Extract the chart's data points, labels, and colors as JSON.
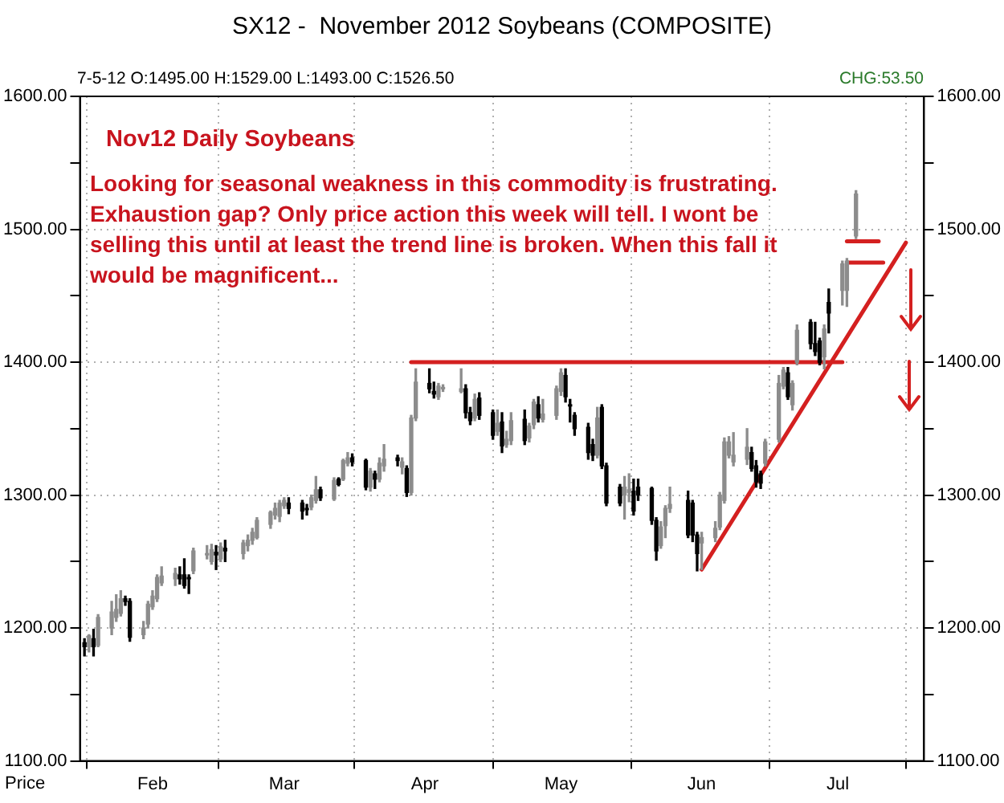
{
  "chart_data": {
    "type": "candlestick",
    "title": "SX12 -  November 2012 Soybeans (COMPOSITE)",
    "ylabel": "Price",
    "annotations": [
      "7-5-12 O:1495.00 H:1529.00 L:1493.00 C:1526.50",
      "CHG:53.50",
      "Nov12 Daily Soybeans",
      "Looking for seasonal weakness in this commodity is frustrating. Exhaustion gap? Only price action this week will tell. I wont be selling this until at least the trend line is broken. When this fall it would be magnificent..."
    ],
    "x": [
      "2012-01-17",
      "2012-01-18",
      "2012-01-19",
      "2012-01-20",
      "2012-01-23",
      "2012-01-24",
      "2012-01-25",
      "2012-01-26",
      "2012-01-27",
      "2012-01-30",
      "2012-01-31",
      "2012-02-01",
      "2012-02-02",
      "2012-02-03",
      "2012-02-06",
      "2012-02-07",
      "2012-02-08",
      "2012-02-09",
      "2012-02-10",
      "2012-02-13",
      "2012-02-14",
      "2012-02-15",
      "2012-02-16",
      "2012-02-17",
      "2012-02-21",
      "2012-02-22",
      "2012-02-23",
      "2012-02-24",
      "2012-02-27",
      "2012-02-28",
      "2012-02-29",
      "2012-03-01",
      "2012-03-02",
      "2012-03-05",
      "2012-03-06",
      "2012-03-07",
      "2012-03-08",
      "2012-03-09",
      "2012-03-12",
      "2012-03-13",
      "2012-03-14",
      "2012-03-15",
      "2012-03-16",
      "2012-03-19",
      "2012-03-20",
      "2012-03-21",
      "2012-03-22",
      "2012-03-23",
      "2012-03-26",
      "2012-03-27",
      "2012-03-28",
      "2012-03-29",
      "2012-03-30",
      "2012-04-02",
      "2012-04-03",
      "2012-04-04",
      "2012-04-05",
      "2012-04-09",
      "2012-04-10",
      "2012-04-11",
      "2012-04-12",
      "2012-04-13",
      "2012-04-16",
      "2012-04-17",
      "2012-04-18",
      "2012-04-19",
      "2012-04-20",
      "2012-04-23",
      "2012-04-24",
      "2012-04-25",
      "2012-04-26",
      "2012-04-27",
      "2012-04-30",
      "2012-05-01",
      "2012-05-02",
      "2012-05-03",
      "2012-05-04",
      "2012-05-07",
      "2012-05-08",
      "2012-05-09",
      "2012-05-10",
      "2012-05-11",
      "2012-05-14",
      "2012-05-15",
      "2012-05-16",
      "2012-05-17",
      "2012-05-18",
      "2012-05-21",
      "2012-05-22",
      "2012-05-23",
      "2012-05-24",
      "2012-05-25",
      "2012-05-29",
      "2012-05-30",
      "2012-05-31",
      "2012-06-01",
      "2012-06-04",
      "2012-06-05",
      "2012-06-06",
      "2012-06-07",
      "2012-06-08",
      "2012-06-11",
      "2012-06-12",
      "2012-06-13",
      "2012-06-14",
      "2012-06-15",
      "2012-06-18",
      "2012-06-19",
      "2012-06-20",
      "2012-06-21",
      "2012-06-22",
      "2012-06-25",
      "2012-06-26",
      "2012-06-27",
      "2012-06-28",
      "2012-06-29",
      "2012-07-02",
      "2012-07-03",
      "2012-07-05"
    ],
    "ohlc": [
      [
        1189,
        1192,
        1179,
        1186
      ],
      [
        1186,
        1195,
        1182,
        1194
      ],
      [
        1192,
        1199,
        1179,
        1186
      ],
      [
        1187,
        1210,
        1186,
        1208
      ],
      [
        1200,
        1220,
        1195,
        1212
      ],
      [
        1208,
        1225,
        1205,
        1214
      ],
      [
        1211,
        1228,
        1209,
        1222
      ],
      [
        1222,
        1224,
        1217,
        1220
      ],
      [
        1220,
        1222,
        1190,
        1193
      ],
      [
        1195,
        1205,
        1192,
        1200
      ],
      [
        1203,
        1220,
        1200,
        1218
      ],
      [
        1216,
        1228,
        1214,
        1224
      ],
      [
        1222,
        1240,
        1220,
        1238
      ],
      [
        1234,
        1246,
        1232,
        1239
      ],
      [
        1237,
        1245,
        1232,
        1241
      ],
      [
        1240,
        1246,
        1233,
        1237
      ],
      [
        1240,
        1252,
        1230,
        1232
      ],
      [
        1238,
        1240,
        1226,
        1237
      ],
      [
        1243,
        1260,
        1241,
        1258
      ],
      [
        1255,
        1262,
        1252,
        1256
      ],
      [
        1250,
        1263,
        1248,
        1259
      ],
      [
        1257,
        1262,
        1244,
        1255
      ],
      [
        1252,
        1264,
        1250,
        1261
      ],
      [
        1260,
        1266,
        1250,
        1258
      ],
      [
        1256,
        1266,
        1252,
        1264
      ],
      [
        1262,
        1270,
        1258,
        1266
      ],
      [
        1266,
        1275,
        1263,
        1272
      ],
      [
        1268,
        1283,
        1267,
        1281
      ],
      [
        1278,
        1288,
        1275,
        1287
      ],
      [
        1285,
        1294,
        1282,
        1290
      ],
      [
        1284,
        1296,
        1280,
        1294
      ],
      [
        1292,
        1298,
        1290,
        1296
      ],
      [
        1294,
        1298,
        1286,
        1290
      ],
      [
        1294,
        1296,
        1282,
        1288
      ],
      [
        1290,
        1293,
        1285,
        1289
      ],
      [
        1291,
        1300,
        1289,
        1298
      ],
      [
        1296,
        1314,
        1294,
        1304
      ],
      [
        1304,
        1306,
        1296,
        1298
      ],
      [
        1297,
        1313,
        1296,
        1311
      ],
      [
        1312,
        1313,
        1307,
        1308
      ],
      [
        1312,
        1327,
        1311,
        1326
      ],
      [
        1324,
        1332,
        1322,
        1328
      ],
      [
        1328,
        1331,
        1322,
        1325
      ],
      [
        1326,
        1327,
        1304,
        1306
      ],
      [
        1306,
        1320,
        1303,
        1318
      ],
      [
        1316,
        1318,
        1305,
        1312
      ],
      [
        1312,
        1328,
        1310,
        1324
      ],
      [
        1322,
        1338,
        1318,
        1327
      ],
      [
        1328,
        1330,
        1322,
        1326
      ],
      [
        1321,
        1328,
        1316,
        1325
      ],
      [
        1320,
        1322,
        1299,
        1302
      ],
      [
        1302,
        1360,
        1300,
        1358
      ],
      [
        1358,
        1395,
        1356,
        1385
      ],
      [
        1384,
        1395,
        1377,
        1380
      ],
      [
        1378,
        1385,
        1373,
        1376
      ],
      [
        1374,
        1384,
        1372,
        1382
      ],
      [
        1380,
        1383,
        1378,
        1381
      ],
      [
        1378,
        1395,
        1377,
        1380
      ],
      [
        1380,
        1383,
        1358,
        1362
      ],
      [
        1362,
        1366,
        1353,
        1356
      ],
      [
        1358,
        1376,
        1356,
        1372
      ],
      [
        1373,
        1377,
        1357,
        1360
      ],
      [
        1362,
        1364,
        1342,
        1345
      ],
      [
        1348,
        1364,
        1345,
        1354
      ],
      [
        1355,
        1362,
        1332,
        1337
      ],
      [
        1338,
        1348,
        1336,
        1342
      ],
      [
        1341,
        1362,
        1338,
        1356
      ],
      [
        1357,
        1364,
        1338,
        1341
      ],
      [
        1343,
        1354,
        1340,
        1352
      ],
      [
        1353,
        1372,
        1350,
        1370
      ],
      [
        1368,
        1374,
        1355,
        1358
      ],
      [
        1357,
        1372,
        1355,
        1361
      ],
      [
        1360,
        1382,
        1357,
        1380
      ],
      [
        1378,
        1395,
        1375,
        1392
      ],
      [
        1390,
        1395,
        1370,
        1374
      ],
      [
        1368,
        1372,
        1355,
        1367
      ],
      [
        1360,
        1362,
        1345,
        1350
      ],
      [
        1351,
        1354,
        1327,
        1332
      ],
      [
        1338,
        1342,
        1326,
        1330
      ],
      [
        1330,
        1366,
        1328,
        1358
      ],
      [
        1366,
        1368,
        1320,
        1322
      ],
      [
        1322,
        1324,
        1292,
        1294
      ],
      [
        1306,
        1308,
        1292,
        1294
      ],
      [
        1300,
        1314,
        1282,
        1306
      ],
      [
        1302,
        1316,
        1295,
        1304
      ],
      [
        1303,
        1312,
        1285,
        1288
      ],
      [
        1306,
        1312,
        1296,
        1300
      ],
      [
        1305,
        1306,
        1278,
        1281
      ],
      [
        1281,
        1283,
        1251,
        1258
      ],
      [
        1262,
        1280,
        1260,
        1276
      ],
      [
        1277,
        1292,
        1268,
        1290
      ],
      [
        1290,
        1306,
        1287,
        1293
      ],
      [
        1296,
        1303,
        1268,
        1270
      ],
      [
        1294,
        1296,
        1265,
        1270
      ],
      [
        1270,
        1272,
        1243,
        1256
      ],
      [
        1264,
        1272,
        1244,
        1268
      ],
      [
        1268,
        1280,
        1265,
        1275
      ],
      [
        1276,
        1302,
        1274,
        1300
      ],
      [
        1296,
        1343,
        1294,
        1340
      ],
      [
        1330,
        1344,
        1328,
        1340
      ],
      [
        1325,
        1347,
        1322,
        1330
      ],
      [
        1327,
        1350,
        1323,
        1336
      ],
      [
        1332,
        1336,
        1318,
        1320
      ],
      [
        1322,
        1326,
        1306,
        1310
      ],
      [
        1316,
        1318,
        1305,
        1309
      ],
      [
        1324,
        1342,
        1322,
        1340
      ],
      [
        1342,
        1390,
        1340,
        1384
      ],
      [
        1382,
        1396,
        1380,
        1394
      ],
      [
        1392,
        1396,
        1372,
        1374
      ],
      [
        1368,
        1386,
        1364,
        1384
      ],
      [
        1400,
        1428,
        1398,
        1424
      ],
      [
        1430,
        1432,
        1410,
        1414
      ],
      [
        1414,
        1430,
        1405,
        1408
      ],
      [
        1416,
        1418,
        1398,
        1400
      ],
      [
        1404,
        1428,
        1395,
        1425
      ],
      [
        1445,
        1455,
        1422,
        1437
      ],
      [
        1454,
        1476,
        1443,
        1474
      ],
      [
        1454,
        1478,
        1442,
        1476
      ],
      [
        1495,
        1529,
        1493,
        1526.5
      ]
    ],
    "series": [
      {
        "type": "line",
        "color": "#d42020",
        "x": [
          "2012-03-29",
          "2012-07-02"
        ],
        "values": [
          1400,
          1400
        ]
      },
      {
        "type": "line",
        "color": "#d42020",
        "x": [
          "2012-06-01",
          "2012-07-16"
        ],
        "values": [
          1244,
          1490
        ]
      },
      {
        "type": "line",
        "color": "#d42020",
        "x": [
          "2012-07-03",
          "2012-07-10"
        ],
        "values": [
          1491,
          1491
        ]
      },
      {
        "type": "line",
        "color": "#d42020",
        "x": [
          "2012-07-03",
          "2012-07-11"
        ],
        "values": [
          1475,
          1475
        ]
      }
    ],
    "xlim": [
      "2012-01-16",
      "2012-07-20"
    ],
    "xticks": [
      {
        "value": "2012-02-01",
        "label": "Feb"
      },
      {
        "value": "2012-03-01",
        "label": "Mar"
      },
      {
        "value": "2012-04-01",
        "label": "Apr"
      },
      {
        "value": "2012-05-01",
        "label": "May"
      },
      {
        "value": "2012-06-01",
        "label": "Jun"
      },
      {
        "value": "2012-07-01",
        "label": "Jul"
      }
    ],
    "ylim": [
      1100,
      1600
    ],
    "yticks": [
      {
        "value": 1100,
        "label": "1100.00"
      },
      {
        "value": 1150,
        "label": null
      },
      {
        "value": 1200,
        "label": "1200.00"
      },
      {
        "value": 1250,
        "label": null
      },
      {
        "value": 1300,
        "label": "1300.00"
      },
      {
        "value": 1350,
        "label": null
      },
      {
        "value": 1400,
        "label": "1400.00"
      },
      {
        "value": 1450,
        "label": null
      },
      {
        "value": 1500,
        "label": "1500.00"
      },
      {
        "value": 1550,
        "label": null
      },
      {
        "value": 1600,
        "label": "1600.00"
      }
    ],
    "y2lim": [
      1100,
      1600
    ],
    "y2ticks": [
      {
        "value": 1100,
        "label": "1100.00"
      },
      {
        "value": 1150,
        "label": null
      },
      {
        "value": 1200,
        "label": "1200.00"
      },
      {
        "value": 1250,
        "label": null
      },
      {
        "value": 1300,
        "label": "1300.00"
      },
      {
        "value": 1350,
        "label": null
      },
      {
        "value": 1400,
        "label": "1400.00"
      },
      {
        "value": 1450,
        "label": null
      },
      {
        "value": 1500,
        "label": "1500.00"
      },
      {
        "value": 1550,
        "label": null
      },
      {
        "value": 1600,
        "label": "1600.00"
      }
    ],
    "grid": true
  }
}
